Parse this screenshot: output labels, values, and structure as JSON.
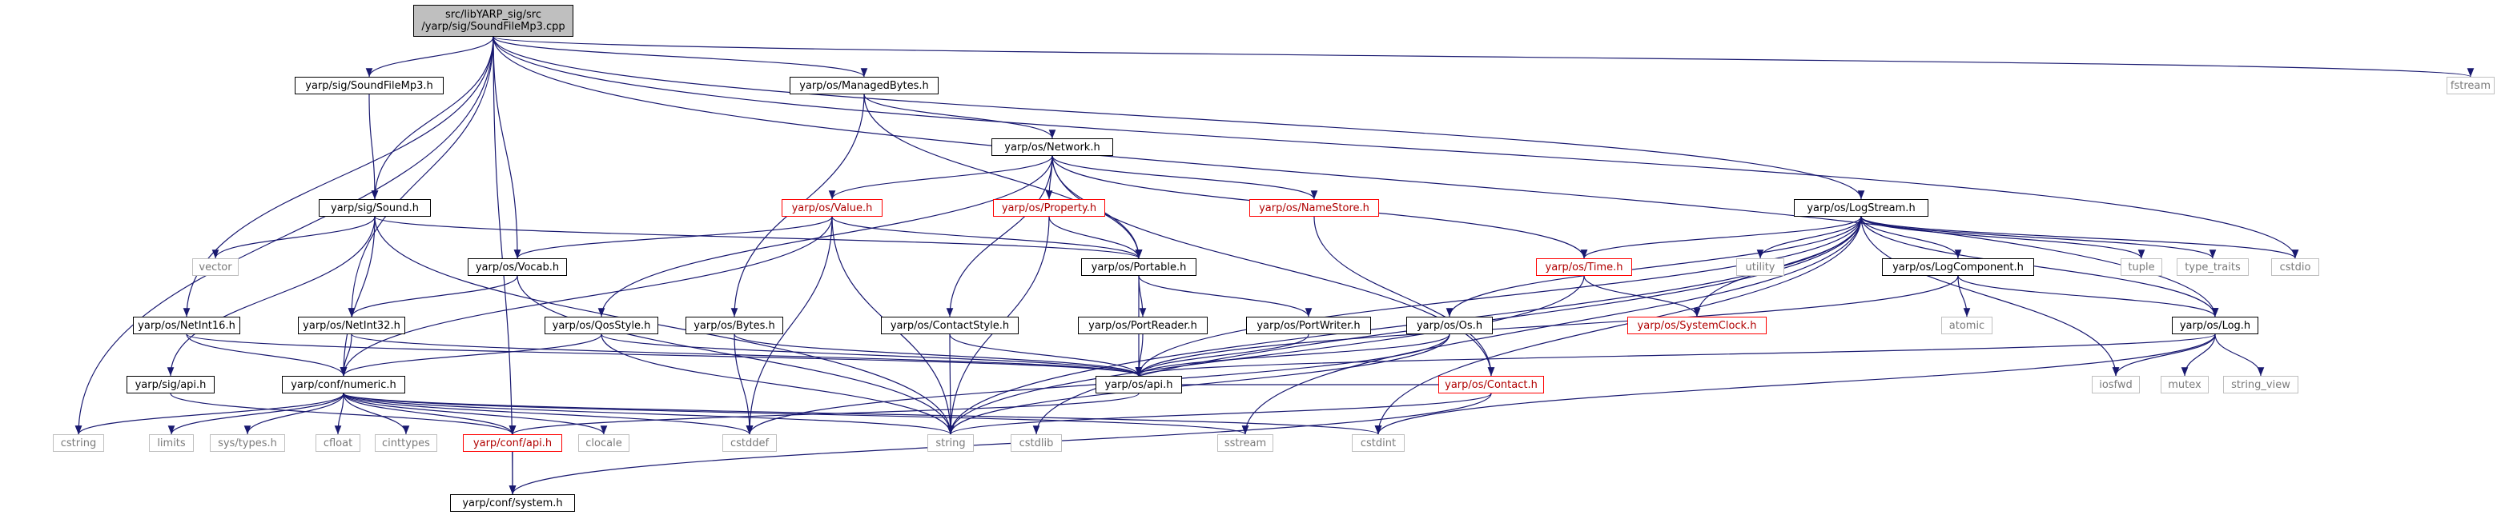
{
  "graph_title": "",
  "nodes": {
    "root": {
      "lines": [
        "src/libYARP_sig/src",
        "/yarp/sig/SoundFileMp3.cpp"
      ]
    },
    "sig_SoundFileMp3_h": {
      "label": "yarp/sig/SoundFileMp3.h"
    },
    "os_ManagedBytes_h": {
      "label": "yarp/os/ManagedBytes.h"
    },
    "fstream": {
      "label": "fstream"
    },
    "sig_Sound_h": {
      "label": "yarp/sig/Sound.h"
    },
    "os_Network_h": {
      "label": "yarp/os/Network.h"
    },
    "os_Value_h": {
      "label": "yarp/os/Value.h"
    },
    "os_Property_h": {
      "label": "yarp/os/Property.h"
    },
    "os_NameStore_h": {
      "label": "yarp/os/NameStore.h"
    },
    "os_LogStream_h": {
      "label": "yarp/os/LogStream.h"
    },
    "vector": {
      "label": "vector"
    },
    "os_Vocab_h": {
      "label": "yarp/os/Vocab.h"
    },
    "os_Portable_h": {
      "label": "yarp/os/Portable.h"
    },
    "os_Time_h": {
      "label": "yarp/os/Time.h"
    },
    "utility": {
      "label": "utility"
    },
    "os_LogComponent_h": {
      "label": "yarp/os/LogComponent.h"
    },
    "tuple": {
      "label": "tuple"
    },
    "type_traits": {
      "label": "type_traits"
    },
    "cstdio": {
      "label": "cstdio"
    },
    "os_NetInt16_h": {
      "label": "yarp/os/NetInt16.h"
    },
    "os_NetInt32_h": {
      "label": "yarp/os/NetInt32.h"
    },
    "os_QosStyle_h": {
      "label": "yarp/os/QosStyle.h"
    },
    "os_Bytes_h": {
      "label": "yarp/os/Bytes.h"
    },
    "os_ContactStyle_h": {
      "label": "yarp/os/ContactStyle.h"
    },
    "os_PortReader_h": {
      "label": "yarp/os/PortReader.h"
    },
    "os_PortWriter_h": {
      "label": "yarp/os/PortWriter.h"
    },
    "os_Os_h": {
      "label": "yarp/os/Os.h"
    },
    "os_SystemClock_h": {
      "label": "yarp/os/SystemClock.h"
    },
    "atomic": {
      "label": "atomic"
    },
    "os_Log_h": {
      "label": "yarp/os/Log.h"
    },
    "sig_api_h": {
      "label": "yarp/sig/api.h"
    },
    "conf_numeric_h": {
      "label": "yarp/conf/numeric.h"
    },
    "os_api_h": {
      "label": "yarp/os/api.h"
    },
    "os_Contact_h": {
      "label": "yarp/os/Contact.h"
    },
    "iosfwd": {
      "label": "iosfwd"
    },
    "mutex": {
      "label": "mutex"
    },
    "string_view": {
      "label": "string_view"
    },
    "cstring": {
      "label": "cstring"
    },
    "limits": {
      "label": "limits"
    },
    "sys_types_h": {
      "label": "sys/types.h"
    },
    "cfloat": {
      "label": "cfloat"
    },
    "cinttypes": {
      "label": "cinttypes"
    },
    "conf_api_h": {
      "label": "yarp/conf/api.h"
    },
    "clocale": {
      "label": "clocale"
    },
    "cstddef": {
      "label": "cstddef"
    },
    "string": {
      "label": "string"
    },
    "cstdlib": {
      "label": "cstdlib"
    },
    "sstream": {
      "label": "sstream"
    },
    "cstdint": {
      "label": "cstdint"
    },
    "conf_system_h": {
      "label": "yarp/conf/system.h"
    }
  },
  "edge_color": "#191970",
  "edges": [
    [
      "root",
      "sig_SoundFileMp3_h"
    ],
    [
      "root",
      "os_ManagedBytes_h"
    ],
    [
      "root",
      "fstream"
    ],
    [
      "root",
      "sig_Sound_h"
    ],
    [
      "root",
      "os_Vocab_h"
    ],
    [
      "root",
      "os_LogStream_h"
    ],
    [
      "root",
      "os_Log_h"
    ],
    [
      "root",
      "os_NetInt16_h"
    ],
    [
      "root",
      "os_NetInt32_h"
    ],
    [
      "root",
      "cstring"
    ],
    [
      "root",
      "cstdio"
    ],
    [
      "root",
      "conf_system_h"
    ],
    [
      "sig_SoundFileMp3_h",
      "sig_Sound_h"
    ],
    [
      "os_ManagedBytes_h",
      "os_Network_h"
    ],
    [
      "os_ManagedBytes_h",
      "os_Bytes_h"
    ],
    [
      "os_ManagedBytes_h",
      "os_Portable_h"
    ],
    [
      "os_Network_h",
      "os_Value_h"
    ],
    [
      "os_Network_h",
      "os_Property_h"
    ],
    [
      "os_Network_h",
      "os_NameStore_h"
    ],
    [
      "os_Network_h",
      "os_Time_h"
    ],
    [
      "os_Network_h",
      "os_Portable_h"
    ],
    [
      "os_Network_h",
      "os_ContactStyle_h"
    ],
    [
      "os_Network_h",
      "os_QosStyle_h"
    ],
    [
      "os_Network_h",
      "os_Contact_h"
    ],
    [
      "sig_Sound_h",
      "vector"
    ],
    [
      "sig_Sound_h",
      "os_Portable_h"
    ],
    [
      "sig_Sound_h",
      "sig_api_h"
    ],
    [
      "sig_Sound_h",
      "conf_numeric_h"
    ],
    [
      "sig_Sound_h",
      "string"
    ],
    [
      "os_Value_h",
      "os_Vocab_h"
    ],
    [
      "os_Value_h",
      "os_Portable_h"
    ],
    [
      "os_Value_h",
      "conf_numeric_h"
    ],
    [
      "os_Value_h",
      "string"
    ],
    [
      "os_Value_h",
      "cstddef"
    ],
    [
      "os_Property_h",
      "os_Portable_h"
    ],
    [
      "os_Property_h",
      "string"
    ],
    [
      "os_NameStore_h",
      "os_Contact_h"
    ],
    [
      "os_LogStream_h",
      "os_Time_h"
    ],
    [
      "os_LogStream_h",
      "utility"
    ],
    [
      "os_LogStream_h",
      "os_LogComponent_h"
    ],
    [
      "os_LogStream_h",
      "tuple"
    ],
    [
      "os_LogStream_h",
      "type_traits"
    ],
    [
      "os_LogStream_h",
      "cstdio"
    ],
    [
      "os_LogStream_h",
      "os_Os_h"
    ],
    [
      "os_LogStream_h",
      "os_SystemClock_h"
    ],
    [
      "os_LogStream_h",
      "os_Log_h"
    ],
    [
      "os_LogStream_h",
      "iosfwd"
    ],
    [
      "os_LogStream_h",
      "os_api_h"
    ],
    [
      "os_LogStream_h",
      "string"
    ],
    [
      "os_LogStream_h",
      "sstream"
    ],
    [
      "os_LogStream_h",
      "cstdint"
    ],
    [
      "os_LogStream_h",
      "cstdlib"
    ],
    [
      "os_Vocab_h",
      "os_NetInt32_h"
    ],
    [
      "os_Vocab_h",
      "string"
    ],
    [
      "os_Portable_h",
      "os_PortReader_h"
    ],
    [
      "os_Portable_h",
      "os_PortWriter_h"
    ],
    [
      "os_Portable_h",
      "os_api_h"
    ],
    [
      "os_Time_h",
      "os_SystemClock_h"
    ],
    [
      "os_Time_h",
      "string"
    ],
    [
      "os_LogComponent_h",
      "atomic"
    ],
    [
      "os_LogComponent_h",
      "os_Log_h"
    ],
    [
      "os_LogComponent_h",
      "os_api_h"
    ],
    [
      "os_NetInt16_h",
      "conf_numeric_h"
    ],
    [
      "os_NetInt16_h",
      "os_api_h"
    ],
    [
      "os_NetInt32_h",
      "conf_numeric_h"
    ],
    [
      "os_NetInt32_h",
      "os_api_h"
    ],
    [
      "os_QosStyle_h",
      "conf_numeric_h"
    ],
    [
      "os_QosStyle_h",
      "os_api_h"
    ],
    [
      "os_QosStyle_h",
      "string"
    ],
    [
      "os_Bytes_h",
      "os_api_h"
    ],
    [
      "os_Bytes_h",
      "cstddef"
    ],
    [
      "os_ContactStyle_h",
      "os_api_h"
    ],
    [
      "os_ContactStyle_h",
      "string"
    ],
    [
      "os_PortReader_h",
      "os_api_h"
    ],
    [
      "os_PortWriter_h",
      "os_api_h"
    ],
    [
      "os_Os_h",
      "os_api_h"
    ],
    [
      "os_Os_h",
      "cstddef"
    ],
    [
      "os_Os_h",
      "string"
    ],
    [
      "os_Log_h",
      "os_api_h"
    ],
    [
      "os_Log_h",
      "iosfwd"
    ],
    [
      "os_Log_h",
      "mutex"
    ],
    [
      "os_Log_h",
      "string_view"
    ],
    [
      "os_Log_h",
      "cstdint"
    ],
    [
      "sig_api_h",
      "conf_api_h"
    ],
    [
      "conf_numeric_h",
      "cstring"
    ],
    [
      "conf_numeric_h",
      "limits"
    ],
    [
      "conf_numeric_h",
      "sys_types_h"
    ],
    [
      "conf_numeric_h",
      "cfloat"
    ],
    [
      "conf_numeric_h",
      "cinttypes"
    ],
    [
      "conf_numeric_h",
      "conf_api_h"
    ],
    [
      "conf_numeric_h",
      "clocale"
    ],
    [
      "conf_numeric_h",
      "cstddef"
    ],
    [
      "conf_numeric_h",
      "string"
    ],
    [
      "conf_numeric_h",
      "sstream"
    ],
    [
      "conf_numeric_h",
      "cstdint"
    ],
    [
      "os_api_h",
      "conf_api_h"
    ],
    [
      "os_Contact_h",
      "os_api_h"
    ],
    [
      "os_Contact_h",
      "string"
    ],
    [
      "os_Contact_h",
      "conf_system_h"
    ],
    [
      "conf_api_h",
      "conf_system_h"
    ]
  ]
}
